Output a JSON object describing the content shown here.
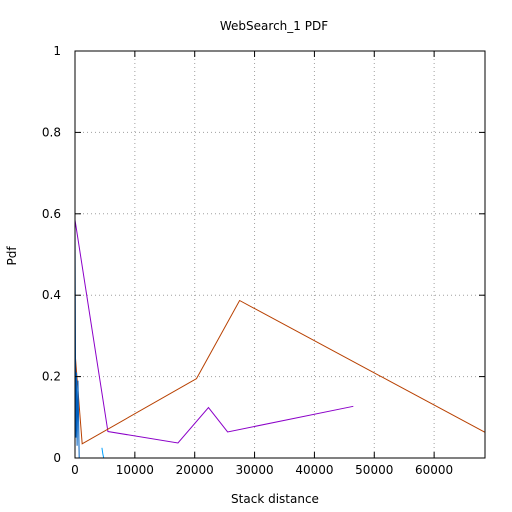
{
  "chart_data": {
    "type": "line",
    "title": "WebSearch_1 PDF",
    "xlabel": "Stack distance",
    "ylabel": "Pdf",
    "xlim": [
      0,
      68500
    ],
    "ylim": [
      0,
      1
    ],
    "xticks": [
      0,
      10000,
      20000,
      30000,
      40000,
      50000,
      60000
    ],
    "yticks": [
      0,
      0.2,
      0.4,
      0.6,
      0.8,
      1
    ],
    "xtick_labels": [
      "0",
      "10000",
      "20000",
      "30000",
      "40000",
      "50000",
      "60000"
    ],
    "ytick_labels": [
      "0",
      "0.2",
      "0.4",
      "0.6",
      "0.8",
      "1"
    ],
    "grid": true,
    "legend": "none",
    "series": [
      {
        "color": "#8b00c8",
        "x": [
          0,
          5500,
          17200,
          22300,
          25500,
          46500
        ],
        "y": [
          0.585,
          0.065,
          0.037,
          0.124,
          0.064,
          0.127
        ]
      },
      {
        "color": "#b84000",
        "x": [
          0,
          1200,
          20300,
          27500,
          68500
        ],
        "y": [
          0.26,
          0.035,
          0.195,
          0.387,
          0.063
        ]
      },
      {
        "color": "#0060c0",
        "x": [
          0,
          80,
          150,
          250,
          350,
          500,
          700
        ],
        "y": [
          0.58,
          0.26,
          0.05,
          0.21,
          0.03,
          0.19,
          0.0
        ]
      },
      {
        "color": "#00a0ff",
        "x": [
          4500,
          4650,
          4800
        ],
        "y": [
          0.025,
          0.01,
          0.0
        ]
      }
    ]
  }
}
